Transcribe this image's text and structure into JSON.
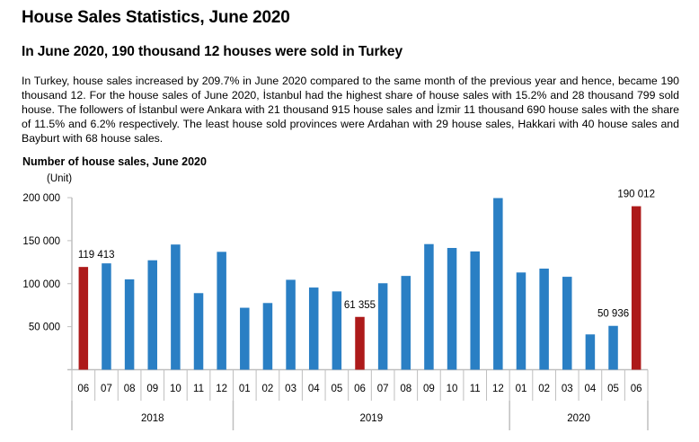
{
  "page": {
    "title": "House Sales Statistics, June 2020",
    "headline": "In June 2020, 190 thousand 12 houses were sold in Turkey",
    "summary": "In Turkey, house sales increased by 209.7% in June 2020 compared to the same month of the previous year and hence, became 190 thousand 12. For the house sales of June 2020, İstanbul had the highest share of house sales with 15.2% and 28 thousand 799 sold house. The followers of İstanbul were Ankara with 21 thousand 915 house sales and İzmir 11 thousand 690 house sales with the share of 11.5% and 6.2% respectively. The least house sold provinces were Ardahan with 29 house sales, Hakkari with 40 house sales and Bayburt with 68 house sales."
  },
  "chart_data": {
    "type": "bar",
    "title": "Number of house sales, June 2020",
    "ylabel": "(Unit)",
    "xlabel": "",
    "ylim": [
      0,
      200000
    ],
    "yticks": [
      0,
      50000,
      100000,
      150000,
      200000
    ],
    "ytick_labels": [
      "",
      "50 000",
      "100 000",
      "150 000",
      "200 000"
    ],
    "grid": false,
    "legend": "none",
    "categories": [
      "06",
      "07",
      "08",
      "09",
      "10",
      "11",
      "12",
      "01",
      "02",
      "03",
      "04",
      "05",
      "06",
      "07",
      "08",
      "09",
      "10",
      "11",
      "12",
      "01",
      "02",
      "03",
      "04",
      "05",
      "06"
    ],
    "years": [
      {
        "label": "2018",
        "count": 7
      },
      {
        "label": "2019",
        "count": 12
      },
      {
        "label": "2020",
        "count": 6
      }
    ],
    "values": [
      119413,
      123600,
      105000,
      127200,
      145500,
      89000,
      137000,
      72000,
      77500,
      104500,
      95500,
      91000,
      61355,
      100500,
      109000,
      146000,
      141500,
      137500,
      199500,
      113000,
      117500,
      108000,
      41000,
      50936,
      190012
    ],
    "highlight_indices": [
      0,
      12,
      24
    ],
    "data_labels": [
      {
        "index": 0,
        "text": "119 413"
      },
      {
        "index": 12,
        "text": "61 355"
      },
      {
        "index": 23,
        "text": "50 936"
      },
      {
        "index": 24,
        "text": "190 012"
      }
    ],
    "colors": {
      "bar": "#2A7FC4",
      "highlight": "#AD1A1A",
      "axis": "#BFBFBF"
    }
  }
}
